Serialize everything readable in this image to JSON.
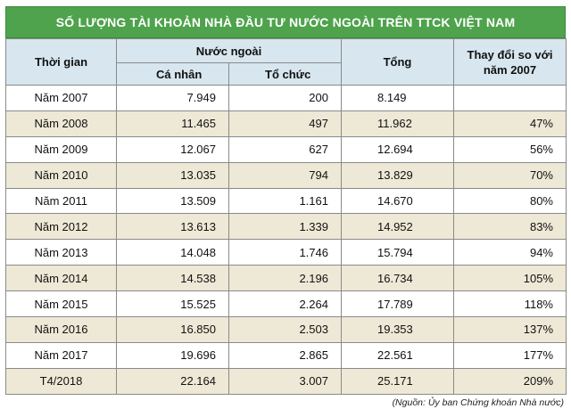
{
  "title": "SỐ LƯỢNG TÀI KHOẢN NHÀ ĐẦU TƯ NƯỚC NGOÀI TRÊN TTCK VIỆT NAM",
  "headers": {
    "time": "Thời gian",
    "foreign": "Nước ngoài",
    "individual": "Cá nhân",
    "organization": "Tổ chức",
    "total": "Tổng",
    "change": "Thay đổi so với năm 2007"
  },
  "rows": [
    {
      "time": "Năm 2007",
      "individual": "7.949",
      "organization": "200",
      "total": "8.149",
      "change": ""
    },
    {
      "time": "Năm 2008",
      "individual": "11.465",
      "organization": "497",
      "total": "11.962",
      "change": "47%"
    },
    {
      "time": "Năm 2009",
      "individual": "12.067",
      "organization": "627",
      "total": "12.694",
      "change": "56%"
    },
    {
      "time": "Năm 2010",
      "individual": "13.035",
      "organization": "794",
      "total": "13.829",
      "change": "70%"
    },
    {
      "time": "Năm 2011",
      "individual": "13.509",
      "organization": "1.161",
      "total": "14.670",
      "change": "80%"
    },
    {
      "time": "Năm 2012",
      "individual": "13.613",
      "organization": "1.339",
      "total": "14.952",
      "change": "83%"
    },
    {
      "time": "Năm 2013",
      "individual": "14.048",
      "organization": "1.746",
      "total": "15.794",
      "change": "94%"
    },
    {
      "time": "Năm 2014",
      "individual": "14.538",
      "organization": "2.196",
      "total": "16.734",
      "change": "105%"
    },
    {
      "time": "Năm 2015",
      "individual": "15.525",
      "organization": "2.264",
      "total": "17.789",
      "change": "118%"
    },
    {
      "time": "Năm 2016",
      "individual": "16.850",
      "organization": "2.503",
      "total": "19.353",
      "change": "137%"
    },
    {
      "time": "Năm 2017",
      "individual": "19.696",
      "organization": "2.865",
      "total": "22.561",
      "change": "177%"
    },
    {
      "time": "T4/2018",
      "individual": "22.164",
      "organization": "3.007",
      "total": "25.171",
      "change": "209%"
    }
  ],
  "source": "(Nguồn: Ủy ban Chứng khoán Nhà nước)",
  "colors": {
    "title_bg": "#4ea34c",
    "header_bg": "#d7e6ef",
    "stripe_bg": "#ede9d6"
  }
}
